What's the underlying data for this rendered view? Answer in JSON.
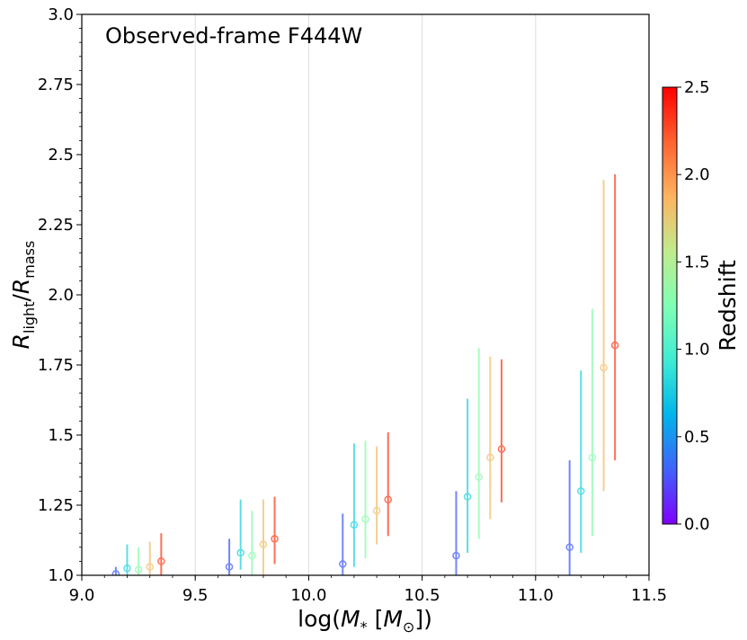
{
  "chart_data": {
    "type": "scatter",
    "annotation": "Observed-frame F444W",
    "xlabel": "log(M_* [M_⊙])",
    "xlabel_parts": {
      "pre": "log(",
      "sym": "M",
      "sub": "*",
      "mid": " [",
      "sym2": "M",
      "sub2": "⊙",
      "post": "])"
    },
    "ylabel_parts": {
      "r1": "R",
      "sub1": "light",
      "slash": "/",
      "r2": "R",
      "sub2": "mass"
    },
    "xlim": [
      9.0,
      11.5
    ],
    "ylim": [
      1.0,
      3.0
    ],
    "x_ticks": [
      "9.0",
      "9.5",
      "10.0",
      "10.5",
      "11.0",
      "11.5"
    ],
    "x_tick_values": [
      9.0,
      9.5,
      10.0,
      10.5,
      11.0,
      11.5
    ],
    "y_ticks": [
      "1.0",
      "1.25",
      "1.5",
      "1.75",
      "2.0",
      "2.25",
      "2.5",
      "2.75",
      "3.0"
    ],
    "y_tick_values": [
      1.0,
      1.25,
      1.5,
      1.75,
      2.0,
      2.25,
      2.5,
      2.75,
      3.0
    ],
    "grid": "vertical",
    "colorbar": {
      "label": "Redshift",
      "range": [
        0.0,
        2.5
      ],
      "ticks": [
        "0.0",
        "0.5",
        "1.0",
        "1.5",
        "2.0",
        "2.5"
      ],
      "tick_values": [
        0.0,
        0.5,
        1.0,
        1.5,
        2.0,
        2.5
      ],
      "colormap": "rainbow"
    },
    "points": [
      {
        "x": 9.15,
        "y": 1.005,
        "ylo": 1.0,
        "yhi": 1.03,
        "z": 0.3
      },
      {
        "x": 9.2,
        "y": 1.025,
        "ylo": 1.0,
        "yhi": 1.11,
        "z": 0.8
      },
      {
        "x": 9.25,
        "y": 1.02,
        "ylo": 1.0,
        "yhi": 1.1,
        "z": 1.3
      },
      {
        "x": 9.3,
        "y": 1.03,
        "ylo": 1.0,
        "yhi": 1.12,
        "z": 1.8
      },
      {
        "x": 9.35,
        "y": 1.05,
        "ylo": 1.0,
        "yhi": 1.15,
        "z": 2.3
      },
      {
        "x": 9.65,
        "y": 1.03,
        "ylo": 1.0,
        "yhi": 1.13,
        "z": 0.3
      },
      {
        "x": 9.7,
        "y": 1.08,
        "ylo": 1.02,
        "yhi": 1.27,
        "z": 0.8
      },
      {
        "x": 9.75,
        "y": 1.07,
        "ylo": 1.0,
        "yhi": 1.23,
        "z": 1.3
      },
      {
        "x": 9.8,
        "y": 1.11,
        "ylo": 1.0,
        "yhi": 1.27,
        "z": 1.8
      },
      {
        "x": 9.85,
        "y": 1.13,
        "ylo": 1.04,
        "yhi": 1.28,
        "z": 2.3
      },
      {
        "x": 10.15,
        "y": 1.04,
        "ylo": 1.0,
        "yhi": 1.22,
        "z": 0.3
      },
      {
        "x": 10.2,
        "y": 1.18,
        "ylo": 1.03,
        "yhi": 1.47,
        "z": 0.8
      },
      {
        "x": 10.25,
        "y": 1.2,
        "ylo": 1.06,
        "yhi": 1.48,
        "z": 1.3
      },
      {
        "x": 10.3,
        "y": 1.23,
        "ylo": 1.11,
        "yhi": 1.46,
        "z": 1.8
      },
      {
        "x": 10.35,
        "y": 1.27,
        "ylo": 1.14,
        "yhi": 1.51,
        "z": 2.3
      },
      {
        "x": 10.65,
        "y": 1.07,
        "ylo": 1.0,
        "yhi": 1.3,
        "z": 0.3
      },
      {
        "x": 10.7,
        "y": 1.28,
        "ylo": 1.08,
        "yhi": 1.63,
        "z": 0.8
      },
      {
        "x": 10.75,
        "y": 1.35,
        "ylo": 1.13,
        "yhi": 1.81,
        "z": 1.3
      },
      {
        "x": 10.8,
        "y": 1.42,
        "ylo": 1.2,
        "yhi": 1.78,
        "z": 1.8
      },
      {
        "x": 10.85,
        "y": 1.45,
        "ylo": 1.26,
        "yhi": 1.77,
        "z": 2.3
      },
      {
        "x": 11.15,
        "y": 1.1,
        "ylo": 1.0,
        "yhi": 1.41,
        "z": 0.3
      },
      {
        "x": 11.2,
        "y": 1.3,
        "ylo": 1.08,
        "yhi": 1.73,
        "z": 0.8
      },
      {
        "x": 11.25,
        "y": 1.42,
        "ylo": 1.14,
        "yhi": 1.95,
        "z": 1.3
      },
      {
        "x": 11.3,
        "y": 1.74,
        "ylo": 1.3,
        "yhi": 2.41,
        "z": 1.8
      },
      {
        "x": 11.35,
        "y": 1.82,
        "ylo": 1.41,
        "yhi": 2.43,
        "z": 2.3
      }
    ]
  }
}
